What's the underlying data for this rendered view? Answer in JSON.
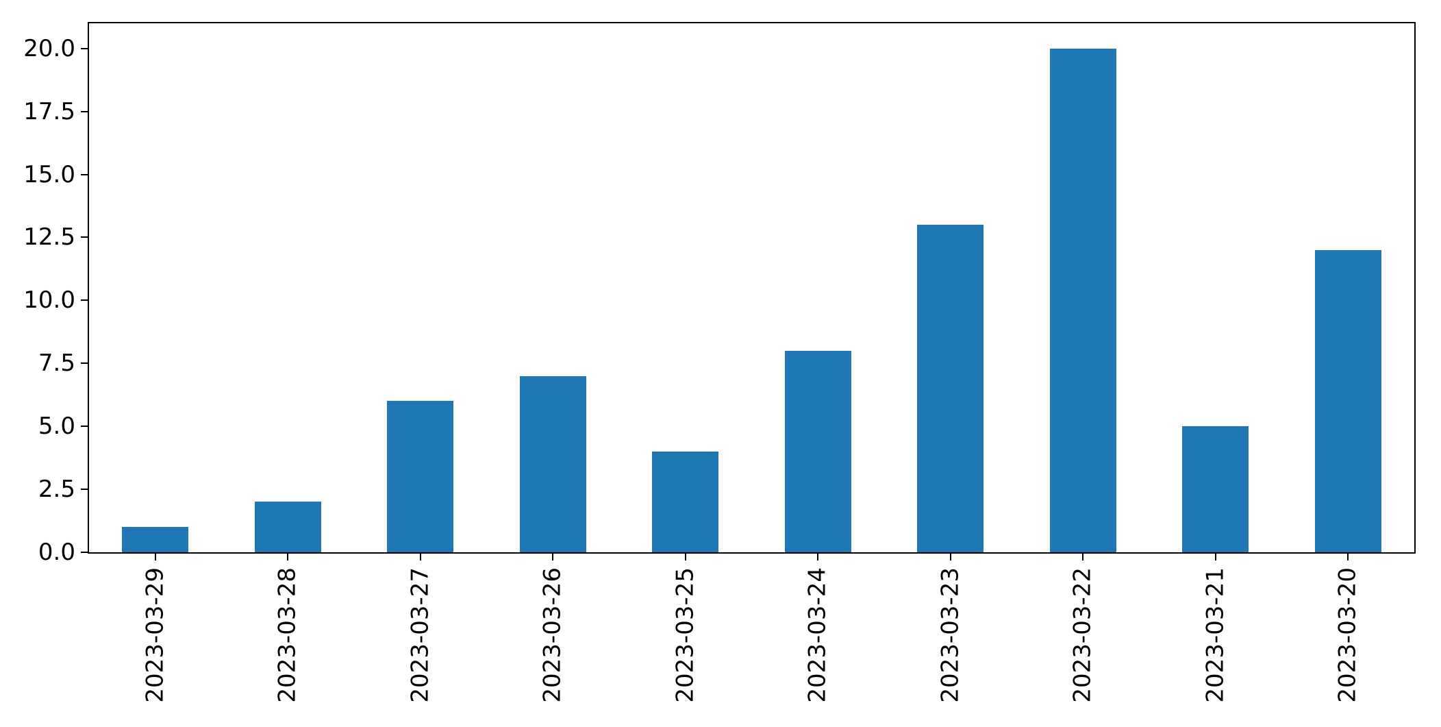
{
  "chart_data": {
    "type": "bar",
    "title": "",
    "xlabel": "",
    "ylabel": "",
    "categories": [
      "2023-03-29",
      "2023-03-28",
      "2023-03-27",
      "2023-03-26",
      "2023-03-25",
      "2023-03-24",
      "2023-03-23",
      "2023-03-22",
      "2023-03-21",
      "2023-03-20"
    ],
    "values": [
      1,
      2,
      6,
      7,
      4,
      8,
      13,
      20,
      5,
      12
    ],
    "ylim": [
      0,
      21
    ],
    "yticks": [
      0.0,
      2.5,
      5.0,
      7.5,
      10.0,
      12.5,
      15.0,
      17.5,
      20.0
    ],
    "ytick_labels": [
      "0.0",
      "2.5",
      "5.0",
      "7.5",
      "10.0",
      "12.5",
      "15.0",
      "17.5",
      "20.0"
    ],
    "bar_color": "#1f77b4",
    "bar_rel_width": 0.5,
    "grid": false,
    "legend": "none",
    "x_label_rotation": 90
  }
}
